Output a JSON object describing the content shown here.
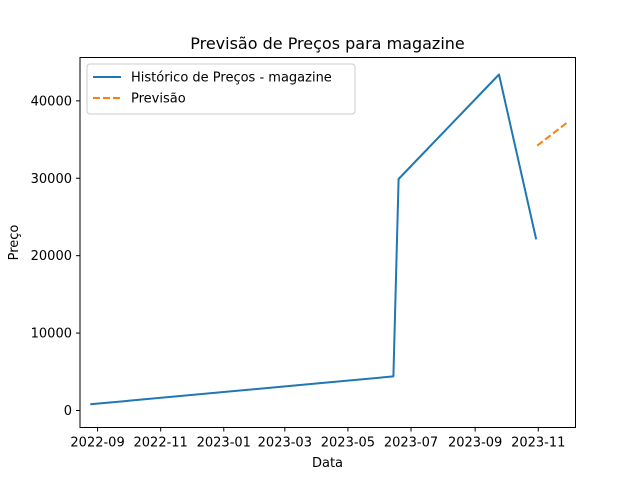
{
  "chart_data": {
    "type": "line",
    "title": "Previsão de Preços para magazine",
    "xlabel": "Data",
    "ylabel": "Preço",
    "x_tick_labels": [
      "2022-09",
      "2022-11",
      "2023-01",
      "2023-03",
      "2023-05",
      "2023-07",
      "2023-09",
      "2023-11"
    ],
    "x_ticks": [
      "2022-09-01",
      "2022-11-01",
      "2023-01-01",
      "2023-03-01",
      "2023-05-01",
      "2023-07-01",
      "2023-09-01",
      "2023-11-01"
    ],
    "y_ticks": [
      0,
      10000,
      20000,
      30000,
      40000
    ],
    "xlim": [
      "2022-08-15",
      "2023-12-07"
    ],
    "ylim": [
      -2200,
      45600
    ],
    "grid": false,
    "legend_position": "top-left",
    "series": [
      {
        "name": "Histórico de Preços - magazine",
        "color": "#1f77b4",
        "style": "solid",
        "points": [
          {
            "x": "2022-08-25",
            "y": 800
          },
          {
            "x": "2023-06-14",
            "y": 4400
          },
          {
            "x": "2023-06-19",
            "y": 29900
          },
          {
            "x": "2023-09-24",
            "y": 43400
          },
          {
            "x": "2023-10-30",
            "y": 22100
          }
        ]
      },
      {
        "name": "Previsão",
        "color": "#ff7f0e",
        "style": "dashed",
        "points": [
          {
            "x": "2023-10-31",
            "y": 34200
          },
          {
            "x": "2023-11-29",
            "y": 37200
          }
        ]
      }
    ]
  }
}
